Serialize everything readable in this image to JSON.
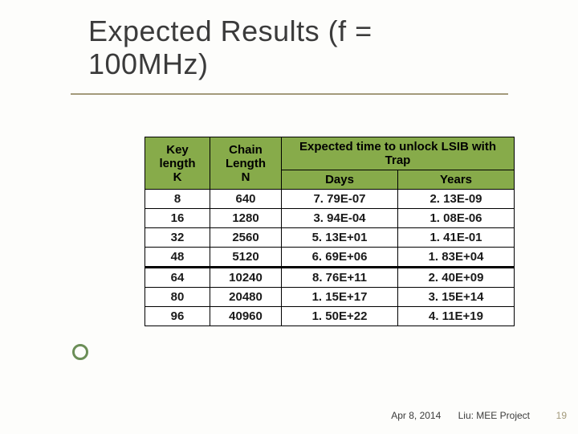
{
  "title": {
    "line1": "Expected Results (f =",
    "line2": "100MHz)"
  },
  "table": {
    "type": "table",
    "header_bg": "#87ab4a",
    "border_color": "#000000",
    "columns": {
      "key": {
        "line1": "Key",
        "line2": "length",
        "line3": "K"
      },
      "chain": {
        "line1": "Chain",
        "line2": "Length",
        "line3": "N"
      },
      "expected_merge": "Expected time to unlock LSIB with Trap",
      "days": "Days",
      "years": "Years"
    },
    "rows": [
      {
        "k": "8",
        "n": "640",
        "days": "7. 79E-07",
        "years": "2. 13E-09"
      },
      {
        "k": "16",
        "n": "1280",
        "days": "3. 94E-04",
        "years": "1. 08E-06"
      },
      {
        "k": "32",
        "n": "2560",
        "days": "5. 13E+01",
        "years": "1. 41E-01"
      },
      {
        "k": "48",
        "n": "5120",
        "days": "6. 69E+06",
        "years": "1. 83E+04"
      },
      {
        "k": "64",
        "n": "10240",
        "days": "8. 76E+11",
        "years": "2. 40E+09"
      },
      {
        "k": "80",
        "n": "20480",
        "days": "1. 15E+17",
        "years": "3. 15E+14"
      },
      {
        "k": "96",
        "n": "40960",
        "days": "1. 50E+22",
        "years": "4. 11E+19"
      }
    ],
    "section_break_after_row": 4
  },
  "footer": {
    "date": "Apr 8, 2014",
    "label": "Liu: MEE Project"
  },
  "slide_number": "19",
  "colors": {
    "title_text": "#3b3b3b",
    "underline": "#a39a7b",
    "circle_border": "#6b8e57",
    "background": "#fdfdfb",
    "slidenum": "#a39a7b"
  }
}
